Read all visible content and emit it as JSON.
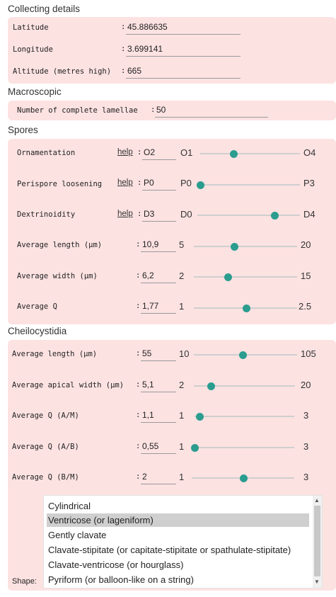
{
  "collecting": {
    "title": "Collecting details",
    "fields": [
      {
        "label": "Latitude",
        "value": "45.886635"
      },
      {
        "label": "Longitude",
        "value": "3.699141"
      },
      {
        "label": "Altitude (metres high)",
        "value": "665"
      }
    ]
  },
  "macroscopic": {
    "title": "Macroscopic",
    "label": "Number of complete lamellae",
    "value": "50"
  },
  "spores": {
    "title": "Spores",
    "help_text": "help",
    "rows": [
      {
        "label": "Ornamentation",
        "value": "O2",
        "min": "O1",
        "max": "O4",
        "level": 0.33
      },
      {
        "label": "Perispore loosening",
        "value": "P0",
        "min": "P0",
        "max": "P3",
        "level": 0.0
      },
      {
        "label": "Dextrinoidity",
        "value": "D3",
        "min": "D0",
        "max": "D4",
        "level": 0.75
      },
      {
        "label": "Average length (µm)",
        "value": "10,9",
        "min": "5",
        "max": "20",
        "level": 0.39
      },
      {
        "label": "Average width (µm)",
        "value": "6,2",
        "min": "2",
        "max": "15",
        "level": 0.33
      },
      {
        "label": "Average Q",
        "value": "1,77",
        "min": "1",
        "max": "2.5",
        "level": 0.51
      }
    ]
  },
  "cheilocystidia": {
    "title": "Cheilocystidia",
    "rows": [
      {
        "label": "Average length (µm)",
        "value": "55",
        "min": "10",
        "max": "105",
        "level": 0.47
      },
      {
        "label": "Average apical width (µm)",
        "value": "5,1",
        "min": "2",
        "max": "20",
        "level": 0.17
      },
      {
        "label": "Average Q (A/M)",
        "value": "1,1",
        "min": "1",
        "max": "3",
        "level": 0.05
      },
      {
        "label": "Average Q (A/B)",
        "value": "0,55",
        "min": "1",
        "max": "3",
        "level": 0.0
      },
      {
        "label": "Average Q (B/M)",
        "value": "2",
        "min": "1",
        "max": "3",
        "level": 0.5
      }
    ],
    "shape_label": "Shape:",
    "shape_options": [
      "Cylindrical",
      "Ventricose (or lageniform)",
      "Gently clavate",
      "Clavate-stipitate (or capitate-stipitate or spathulate-stipitate)",
      "Clavate-ventricose (or hourglass)",
      "Pyriform (or balloon-like on a string)"
    ],
    "shape_selected": "Ventricose (or lageniform)"
  },
  "colors": {
    "panel": "#fde2e2",
    "accent": "#2a9d8f",
    "selected": "#cfcfcf"
  },
  "icons": [
    "chevron-up-icon",
    "chevron-down-icon"
  ]
}
